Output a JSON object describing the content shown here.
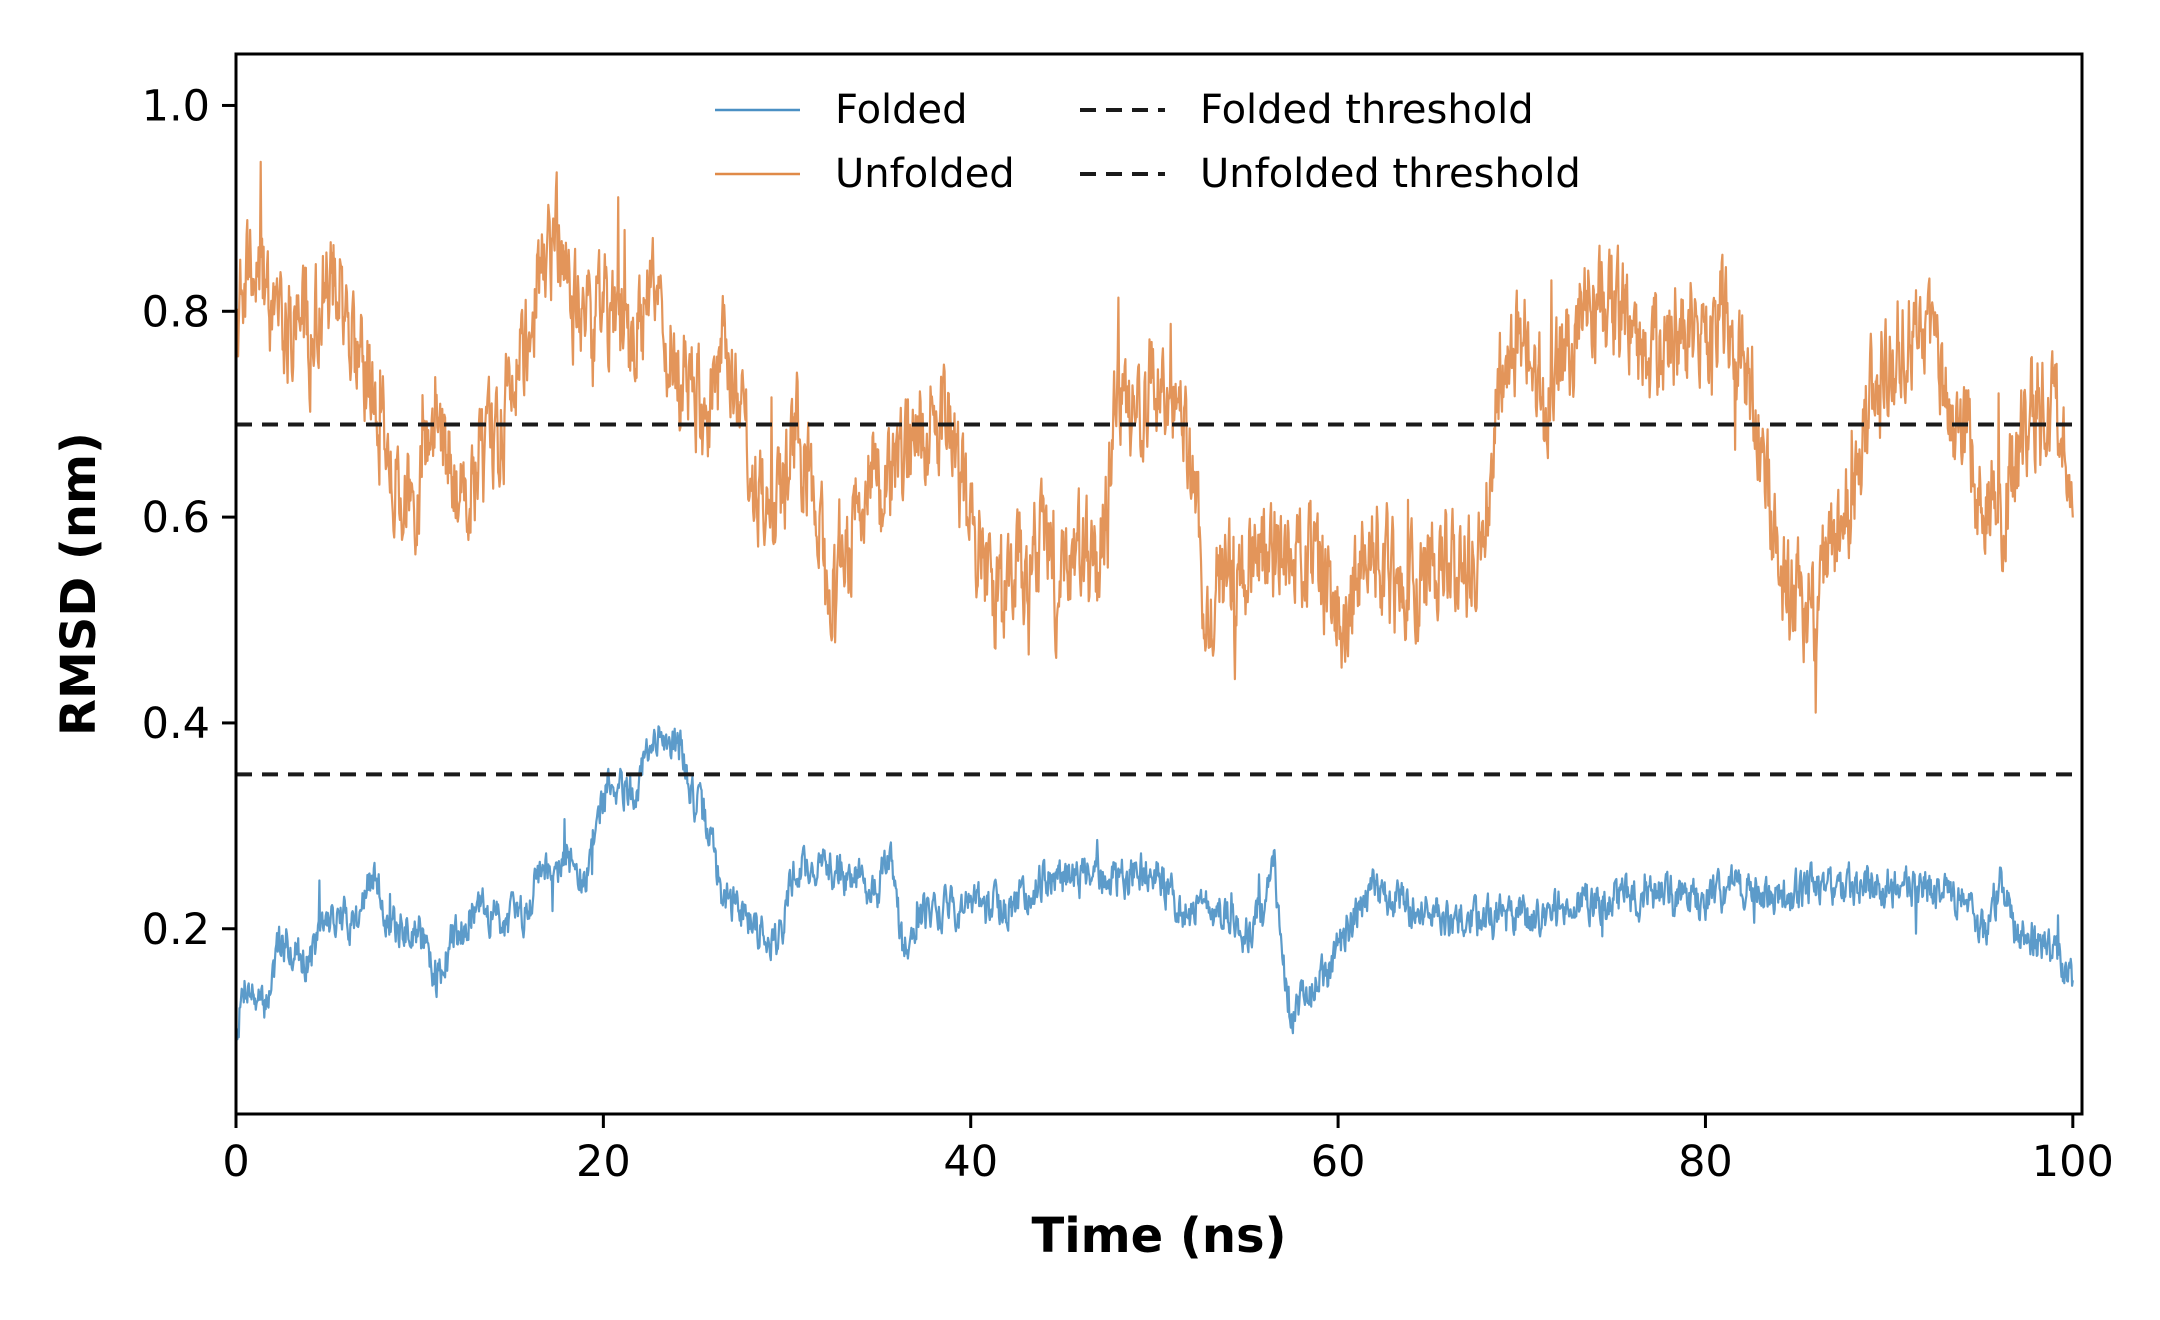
{
  "chart_data": {
    "type": "line",
    "xlabel": "Time (ns)",
    "ylabel": "RMSD (nm)",
    "xlim": [
      0,
      100.5
    ],
    "ylim": [
      0.02,
      1.05
    ],
    "xticks": [
      0,
      20,
      40,
      60,
      80,
      100
    ],
    "yticks": [
      0.2,
      0.4,
      0.6,
      0.8,
      1.0
    ],
    "xtick_labels": [
      "0",
      "20",
      "40",
      "60",
      "80",
      "100"
    ],
    "ytick_labels": [
      "0.2",
      "0.4",
      "0.6",
      "0.8",
      "1.0"
    ],
    "grid": false,
    "legend_position": "top-center",
    "series": [
      {
        "name": "Folded",
        "color": "#4a90c4",
        "style": "solid",
        "anchors": [
          [
            0,
            0.1
          ],
          [
            0.5,
            0.15
          ],
          [
            1.5,
            0.12
          ],
          [
            2.5,
            0.19
          ],
          [
            4,
            0.17
          ],
          [
            5,
            0.21
          ],
          [
            6.5,
            0.21
          ],
          [
            7.5,
            0.25
          ],
          [
            8.5,
            0.2
          ],
          [
            10,
            0.2
          ],
          [
            11,
            0.15
          ],
          [
            12,
            0.2
          ],
          [
            13,
            0.22
          ],
          [
            14.5,
            0.21
          ],
          [
            15.5,
            0.21
          ],
          [
            16.5,
            0.26
          ],
          [
            18,
            0.27
          ],
          [
            19,
            0.24
          ],
          [
            19.8,
            0.32
          ],
          [
            20.5,
            0.35
          ],
          [
            21.5,
            0.33
          ],
          [
            22.5,
            0.37
          ],
          [
            23.5,
            0.39
          ],
          [
            24.3,
            0.37
          ],
          [
            25,
            0.32
          ],
          [
            25.7,
            0.3
          ],
          [
            26.5,
            0.23
          ],
          [
            27.5,
            0.22
          ],
          [
            28.5,
            0.2
          ],
          [
            29.5,
            0.19
          ],
          [
            30.5,
            0.26
          ],
          [
            32,
            0.26
          ],
          [
            33.5,
            0.25
          ],
          [
            35,
            0.24
          ],
          [
            35.7,
            0.27
          ],
          [
            36.3,
            0.18
          ],
          [
            37,
            0.21
          ],
          [
            38.5,
            0.22
          ],
          [
            40,
            0.22
          ],
          [
            42,
            0.22
          ],
          [
            44,
            0.25
          ],
          [
            46,
            0.25
          ],
          [
            48,
            0.25
          ],
          [
            50,
            0.26
          ],
          [
            50.8,
            0.24
          ],
          [
            51.5,
            0.22
          ],
          [
            53,
            0.22
          ],
          [
            55,
            0.2
          ],
          [
            56,
            0.21
          ],
          [
            56.5,
            0.26
          ],
          [
            57,
            0.16
          ],
          [
            57.5,
            0.11
          ],
          [
            58.5,
            0.14
          ],
          [
            59.5,
            0.16
          ],
          [
            60.5,
            0.2
          ],
          [
            62,
            0.24
          ],
          [
            64,
            0.22
          ],
          [
            66,
            0.21
          ],
          [
            68,
            0.21
          ],
          [
            70,
            0.21
          ],
          [
            72,
            0.22
          ],
          [
            74,
            0.23
          ],
          [
            76,
            0.23
          ],
          [
            78,
            0.23
          ],
          [
            80,
            0.23
          ],
          [
            82,
            0.24
          ],
          [
            84,
            0.23
          ],
          [
            86,
            0.24
          ],
          [
            88,
            0.24
          ],
          [
            90,
            0.24
          ],
          [
            92,
            0.24
          ],
          [
            94,
            0.23
          ],
          [
            95.3,
            0.19
          ],
          [
            96,
            0.25
          ],
          [
            96.8,
            0.2
          ],
          [
            98,
            0.19
          ],
          [
            99,
            0.17
          ],
          [
            99.8,
            0.16
          ],
          [
            100,
            0.15
          ]
        ],
        "noise": 0.016,
        "seed": 7
      },
      {
        "name": "Unfolded",
        "color": "#e08a48",
        "style": "solid",
        "anchors": [
          [
            0,
            0.78
          ],
          [
            1,
            0.85
          ],
          [
            2.5,
            0.8
          ],
          [
            4,
            0.78
          ],
          [
            5.5,
            0.85
          ],
          [
            6.5,
            0.76
          ],
          [
            8,
            0.72
          ],
          [
            9,
            0.6
          ],
          [
            10,
            0.65
          ],
          [
            11,
            0.7
          ],
          [
            12,
            0.62
          ],
          [
            13,
            0.65
          ],
          [
            14,
            0.66
          ],
          [
            15,
            0.72
          ],
          [
            16,
            0.8
          ],
          [
            17.5,
            0.86
          ],
          [
            18.5,
            0.8
          ],
          [
            19.5,
            0.78
          ],
          [
            20.5,
            0.8
          ],
          [
            21.5,
            0.76
          ],
          [
            22.5,
            0.82
          ],
          [
            23.5,
            0.78
          ],
          [
            24.5,
            0.73
          ],
          [
            25.5,
            0.7
          ],
          [
            26.5,
            0.75
          ],
          [
            27.5,
            0.68
          ],
          [
            28.5,
            0.62
          ],
          [
            29.5,
            0.62
          ],
          [
            30.5,
            0.68
          ],
          [
            31.5,
            0.62
          ],
          [
            32.5,
            0.55
          ],
          [
            33.5,
            0.58
          ],
          [
            34.5,
            0.66
          ],
          [
            35.5,
            0.62
          ],
          [
            36.5,
            0.65
          ],
          [
            37.5,
            0.68
          ],
          [
            38.5,
            0.7
          ],
          [
            39.5,
            0.63
          ],
          [
            40.5,
            0.55
          ],
          [
            41.5,
            0.52
          ],
          [
            43,
            0.55
          ],
          [
            44,
            0.58
          ],
          [
            45,
            0.52
          ],
          [
            46,
            0.56
          ],
          [
            47,
            0.55
          ],
          [
            48,
            0.72
          ],
          [
            49,
            0.7
          ],
          [
            50,
            0.74
          ],
          [
            51,
            0.73
          ],
          [
            52,
            0.65
          ],
          [
            52.8,
            0.5
          ],
          [
            53.5,
            0.55
          ],
          [
            54.5,
            0.54
          ],
          [
            56,
            0.58
          ],
          [
            57.5,
            0.55
          ],
          [
            59,
            0.54
          ],
          [
            60.5,
            0.52
          ],
          [
            61.5,
            0.58
          ],
          [
            62.5,
            0.56
          ],
          [
            63.5,
            0.52
          ],
          [
            65,
            0.55
          ],
          [
            66,
            0.56
          ],
          [
            67,
            0.54
          ],
          [
            68,
            0.6
          ],
          [
            69,
            0.75
          ],
          [
            70,
            0.78
          ],
          [
            71,
            0.72
          ],
          [
            72,
            0.75
          ],
          [
            73.5,
            0.82
          ],
          [
            75,
            0.8
          ],
          [
            76,
            0.78
          ],
          [
            77,
            0.76
          ],
          [
            78,
            0.78
          ],
          [
            79,
            0.8
          ],
          [
            80,
            0.77
          ],
          [
            81,
            0.8
          ],
          [
            82,
            0.75
          ],
          [
            83,
            0.68
          ],
          [
            84,
            0.55
          ],
          [
            85,
            0.52
          ],
          [
            86,
            0.5
          ],
          [
            87,
            0.58
          ],
          [
            88,
            0.62
          ],
          [
            89,
            0.73
          ],
          [
            90.5,
            0.78
          ],
          [
            92,
            0.76
          ],
          [
            93,
            0.72
          ],
          [
            94,
            0.68
          ],
          [
            95,
            0.62
          ],
          [
            96,
            0.6
          ],
          [
            97,
            0.66
          ],
          [
            98,
            0.72
          ],
          [
            99,
            0.7
          ],
          [
            100,
            0.66
          ]
        ],
        "noise": 0.045,
        "seed": 19
      },
      {
        "name": "Folded threshold",
        "color": "#1a1a1a",
        "style": "dashed",
        "y": 0.69
      },
      {
        "name": "Unfolded threshold",
        "color": "#1a1a1a",
        "style": "dashed",
        "y": 0.35
      }
    ]
  }
}
